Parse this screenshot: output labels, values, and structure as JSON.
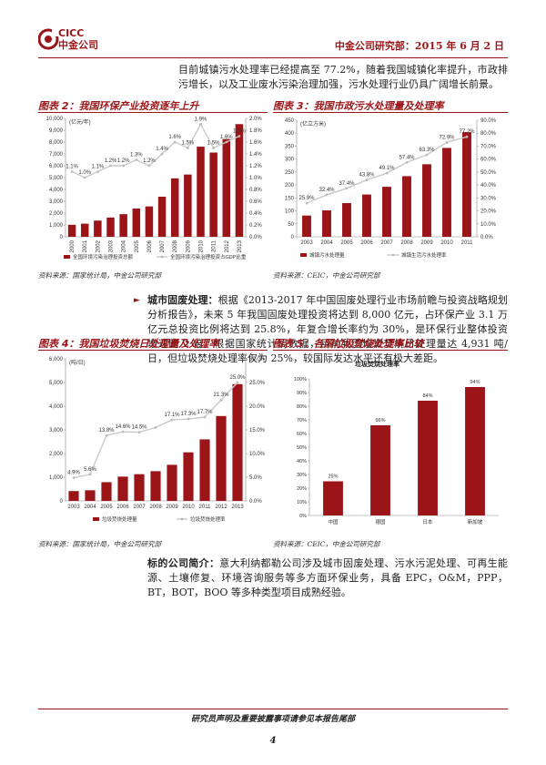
{
  "header": {
    "logo_en": "CICC",
    "logo_cn": "中金公司",
    "title": "中金公司研究部：2015 年 6 月 2 日"
  },
  "intro_text": "目前城镇污水处理率已经提高至 77.2%，随着我国城镇化率提升，市政排污增长，以及工业废水污染治理加强，污水处理行业仍具广阔增长前景。",
  "body": {
    "para1_head": "城市固废处理：",
    "para1_text": "根据《2013-2017 年中国固废处理行业市场前瞻与投资战略规划分析报告》，未来 5 年我国固废处理投资将达到 8,000 亿元，占环保产业 3.1 万亿元总投资比例将达到 25.8%，年复合增长率约为 30%，是环保行业整体投资增速的 2 倍。根据国家统计局数据，目前我国垃圾焚烧日处理量达 4,931 吨/日，但垃圾焚烧处理率仅为 25%，较国际发达水平还有极大差距。",
    "para2_head": "标的公司简介：",
    "para2_text": "意大利纳都勒公司涉及城市固废处理、污水污泥处理、可再生能源、土壤修复、环境咨询服务等多方面环保业务，具备 EPC，O&M，PPP，BT，BOT，BOO 等多种类型项目成熟经验。"
  },
  "figures": {
    "fig2": {
      "label": "图表 2：我国环保产业投资逐年上升",
      "source": "资料来源：国家统计局，中金公司研究部"
    },
    "fig3": {
      "label": "图表 3：我国市政污水处理量及处理率",
      "source": "资料来源：CEIC，中金公司研究部"
    },
    "fig4": {
      "label": "图表 4：我国垃圾焚烧日处理量及处理率",
      "source": "资料来源：国家统计局，中金公司研究部"
    },
    "fig5": {
      "label": "图表 5：各国垃圾焚烧处理率比较",
      "source": "资料来源：CEIC，中金公司研究部"
    }
  },
  "chart_data": [
    {
      "type": "bar",
      "unit_label": "(亿元/年)",
      "categories": [
        "2000",
        "2001",
        "2002",
        "2003",
        "2004",
        "2005",
        "2006",
        "2007",
        "2008",
        "2009",
        "2010",
        "2011",
        "2012",
        "2013"
      ],
      "series": [
        {
          "name": "全国环境污染治理投资总额",
          "kind": "bar",
          "axis": "left",
          "values": [
            1015,
            1107,
            1367,
            1627,
            1909,
            2388,
            2566,
            3387,
            4937,
            5258,
            7612,
            7114,
            8253,
            9516
          ]
        },
        {
          "name": "全国环境污染治理投资占GDP比重",
          "kind": "line",
          "axis": "right",
          "values": [
            1.1,
            1.0,
            1.1,
            1.2,
            1.2,
            1.3,
            1.2,
            1.4,
            1.6,
            1.5,
            1.9,
            1.5,
            1.6,
            1.7
          ],
          "labels": [
            "1.1%",
            "1.0%",
            "1.1%",
            "1.2%",
            "1.2%",
            "1.3%",
            "1.2%",
            "1.4%",
            "1.6%",
            "1.5%",
            "1.9%",
            "1.5%",
            "1.6%",
            "1.7%"
          ]
        }
      ],
      "y_left": {
        "min": 0,
        "max": 10000,
        "ticks": [
          "0",
          "1,000",
          "2,000",
          "3,000",
          "4,000",
          "5,000",
          "6,000",
          "7,000",
          "8,000",
          "9,000",
          "10,000"
        ]
      },
      "y_right": {
        "min": 0,
        "max": 2.0,
        "ticks": [
          "0.0%",
          "0.2%",
          "0.4%",
          "0.6%",
          "0.8%",
          "1.0%",
          "1.2%",
          "1.4%",
          "1.6%",
          "1.8%",
          "2.0%"
        ]
      },
      "colors": {
        "bar": "#9a1418",
        "line": "#c9c9c9"
      }
    },
    {
      "type": "bar",
      "unit_label": "(亿立方米)",
      "categories": [
        "2003",
        "2004",
        "2005",
        "2006",
        "2007",
        "2008",
        "2009",
        "2010",
        "2011"
      ],
      "series": [
        {
          "name": "城镇污水处理量",
          "kind": "bar",
          "axis": "left",
          "values": [
            82,
            102,
            130,
            163,
            193,
            234,
            280,
            343,
            404
          ]
        },
        {
          "name": "城镇生活污水处理率",
          "kind": "line",
          "axis": "right",
          "values": [
            25.9,
            32.4,
            37.4,
            43.8,
            49.1,
            57.4,
            63.3,
            72.9,
            77.2
          ],
          "labels": [
            "25.9%",
            "32.4%",
            "37.4%",
            "43.8%",
            "49.1%",
            "57.4%",
            "63.3%",
            "72.9%",
            "77.2%"
          ]
        }
      ],
      "y_left": {
        "min": 0,
        "max": 450,
        "ticks": [
          "0",
          "50",
          "100",
          "150",
          "200",
          "250",
          "300",
          "350",
          "400",
          "450"
        ]
      },
      "y_right": {
        "min": 0,
        "max": 90,
        "ticks": [
          "0.0%",
          "10.0%",
          "20.0%",
          "30.0%",
          "40.0%",
          "50.0%",
          "60.0%",
          "70.0%",
          "80.0%",
          "90.0%"
        ]
      },
      "colors": {
        "bar": "#9a1418",
        "line": "#c9c9c9"
      }
    },
    {
      "type": "bar",
      "unit_label": "(吨/日)",
      "categories": [
        "2003",
        "2004",
        "2005",
        "2006",
        "2007",
        "2008",
        "2009",
        "2010",
        "2011",
        "2012",
        "2013"
      ],
      "series": [
        {
          "name": "垃圾焚烧处理量",
          "kind": "bar",
          "axis": "left",
          "values": [
            415,
            449,
            791,
            1025,
            1128,
            1255,
            1523,
            2051,
            2599,
            3584,
            4931
          ]
        },
        {
          "name": "垃圾焚烧处理率",
          "kind": "line",
          "axis": "right",
          "values": [
            4.9,
            5.6,
            13.8,
            14.6,
            14.5,
            15.5,
            17.1,
            17.3,
            17.7,
            21.3,
            25.0
          ],
          "labels": [
            "4.9%",
            "5.6%",
            "13.8%",
            "14.6%",
            "14.5%",
            "",
            "17.1%",
            "17.3%",
            "17.7%",
            "21.3%",
            "25.0%"
          ]
        }
      ],
      "y_left": {
        "min": 0,
        "max": 6000,
        "ticks": [
          "0",
          "1,000",
          "2,000",
          "3,000",
          "4,000",
          "5,000",
          "6,000"
        ]
      },
      "y_right": {
        "min": 0,
        "max": 30,
        "ticks": [
          "0.0%",
          "5.0%",
          "10.0%",
          "15.0%",
          "20.0%",
          "25.0%",
          "30.0%"
        ]
      },
      "colors": {
        "bar": "#9a1418",
        "line": "#c9c9c9"
      }
    },
    {
      "type": "bar",
      "title": "垃圾焚烧处理率",
      "categories": [
        "中国",
        "德国",
        "日本",
        "新加坡"
      ],
      "values": [
        25,
        66,
        84,
        94
      ],
      "labels": [
        "25%",
        "66%",
        "84%",
        "94%"
      ],
      "y": {
        "min": 0,
        "max": 100,
        "ticks": [
          "0%",
          "10%",
          "20%",
          "30%",
          "40%",
          "50%",
          "60%",
          "70%",
          "80%",
          "90%",
          "100%"
        ]
      },
      "colors": {
        "bar": "#9a1418"
      }
    }
  ],
  "footer": {
    "disclaimer": "研究员声明及重要披露事项请参见本报告尾部",
    "page": "4"
  }
}
